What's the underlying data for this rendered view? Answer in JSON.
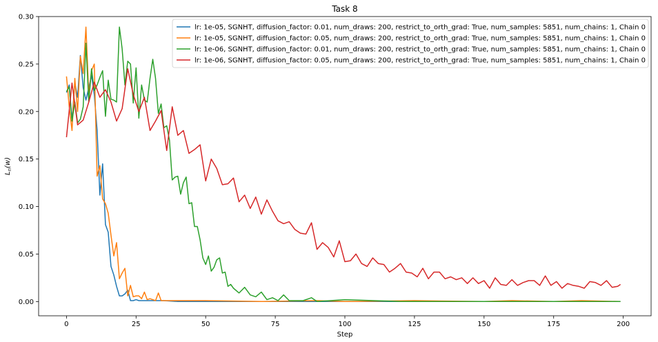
{
  "chart_data": {
    "type": "line",
    "title": "Task 8",
    "xlabel": "Step",
    "ylabel": "L_n(w)",
    "xlim": [
      -10,
      210
    ],
    "ylim": [
      -0.015,
      0.3
    ],
    "xticks": [
      0,
      25,
      50,
      75,
      100,
      125,
      150,
      175,
      200
    ],
    "yticks": [
      0.0,
      0.05,
      0.1,
      0.15,
      0.2,
      0.25,
      0.3
    ],
    "xtick_labels": [
      "0",
      "25",
      "50",
      "75",
      "100",
      "125",
      "150",
      "175",
      "200"
    ],
    "ytick_labels": [
      "0.00",
      "0.05",
      "0.10",
      "0.15",
      "0.20",
      "0.25",
      "0.30"
    ],
    "grid": false,
    "legend_position": "top-right",
    "series": [
      {
        "name": "lr: 1e-05, SGNHT, diffusion_factor: 0.01, num_draws: 200, restrict_to_orth_grad: True, num_samples: 5851, num_chains: 1,  Chain 0",
        "color": "#1f77b4",
        "x": [
          0,
          1,
          2,
          3,
          4,
          5,
          6,
          7,
          8,
          9,
          10,
          11,
          12,
          13,
          14,
          15,
          16,
          17,
          18,
          19,
          20,
          21,
          22,
          23,
          24,
          25,
          26,
          27,
          28,
          29,
          30,
          35,
          40,
          60,
          80,
          100,
          150,
          199
        ],
        "values": [
          0.22,
          0.228,
          0.19,
          0.23,
          0.215,
          0.259,
          0.225,
          0.212,
          0.225,
          0.238,
          0.218,
          0.18,
          0.112,
          0.145,
          0.081,
          0.073,
          0.037,
          0.028,
          0.016,
          0.006,
          0.006,
          0.008,
          0.012,
          0.001,
          0.001,
          0.002,
          0.001,
          0.001,
          0.001,
          0.001,
          0.001,
          0.001,
          0.0,
          0.0,
          0.0,
          0.0,
          0.0,
          0.0
        ]
      },
      {
        "name": "lr: 1e-05, SGNHT, diffusion_factor: 0.05, num_draws: 200, restrict_to_orth_grad: True, num_samples: 5851, num_chains: 1,  Chain 0",
        "color": "#ff7f0e",
        "x": [
          0,
          1,
          2,
          3,
          4,
          5,
          6,
          7,
          8,
          9,
          10,
          11,
          12,
          13,
          14,
          15,
          16,
          17,
          18,
          19,
          20,
          21,
          22,
          23,
          24,
          25,
          26,
          27,
          28,
          29,
          30,
          31,
          32,
          33,
          34,
          35,
          40,
          45,
          50,
          70,
          90,
          100,
          125,
          150,
          160,
          175,
          185,
          199
        ],
        "values": [
          0.237,
          0.205,
          0.18,
          0.235,
          0.2,
          0.258,
          0.24,
          0.289,
          0.218,
          0.243,
          0.25,
          0.132,
          0.143,
          0.108,
          0.103,
          0.093,
          0.07,
          0.048,
          0.062,
          0.024,
          0.03,
          0.035,
          0.006,
          0.017,
          0.005,
          0.006,
          0.006,
          0.003,
          0.01,
          0.002,
          0.003,
          0.002,
          0.001,
          0.009,
          0.001,
          0.001,
          0.001,
          0.001,
          0.001,
          0.0,
          0.001,
          0.0,
          0.001,
          0.0,
          0.001,
          0.0,
          0.001,
          0.0
        ]
      },
      {
        "name": "lr: 1e-06, SGNHT, diffusion_factor: 0.01, num_draws: 200, restrict_to_orth_grad: True, num_samples: 5851, num_chains: 1,  Chain 0",
        "color": "#2ca02c",
        "x": [
          0,
          1,
          2,
          3,
          4,
          5,
          6,
          7,
          8,
          9,
          10,
          11,
          12,
          13,
          14,
          15,
          16,
          17,
          18,
          19,
          20,
          21,
          22,
          23,
          24,
          25,
          26,
          27,
          28,
          29,
          30,
          31,
          32,
          33,
          34,
          35,
          36,
          37,
          38,
          39,
          40,
          41,
          42,
          43,
          44,
          45,
          46,
          47,
          48,
          49,
          50,
          51,
          52,
          53,
          54,
          55,
          56,
          57,
          58,
          59,
          60,
          62,
          64,
          66,
          68,
          70,
          72,
          74,
          76,
          78,
          80,
          85,
          88,
          90,
          100,
          120,
          150,
          199
        ],
        "values": [
          0.221,
          0.226,
          0.19,
          0.21,
          0.188,
          0.192,
          0.205,
          0.272,
          0.21,
          0.245,
          0.222,
          0.228,
          0.236,
          0.243,
          0.195,
          0.233,
          0.213,
          0.212,
          0.21,
          0.289,
          0.266,
          0.228,
          0.253,
          0.25,
          0.209,
          0.246,
          0.193,
          0.228,
          0.212,
          0.21,
          0.235,
          0.255,
          0.235,
          0.198,
          0.208,
          0.183,
          0.185,
          0.17,
          0.128,
          0.131,
          0.132,
          0.113,
          0.125,
          0.131,
          0.103,
          0.104,
          0.079,
          0.079,
          0.065,
          0.046,
          0.039,
          0.048,
          0.032,
          0.036,
          0.044,
          0.046,
          0.03,
          0.031,
          0.016,
          0.018,
          0.014,
          0.009,
          0.015,
          0.007,
          0.005,
          0.01,
          0.002,
          0.004,
          0.001,
          0.007,
          0.001,
          0.001,
          0.004,
          0.0,
          0.002,
          0.0,
          0.0,
          0.0
        ]
      },
      {
        "name": "lr: 1e-06, SGNHT, diffusion_factor: 0.05, num_draws: 200, restrict_to_orth_grad: True, num_samples: 5851, num_chains: 1,  Chain 0",
        "color": "#d62728",
        "x": [
          0,
          2,
          4,
          6,
          8,
          10,
          12,
          14,
          16,
          18,
          20,
          22,
          24,
          26,
          28,
          30,
          32,
          34,
          36,
          38,
          40,
          42,
          44,
          46,
          48,
          50,
          52,
          54,
          56,
          58,
          60,
          62,
          64,
          66,
          68,
          70,
          72,
          74,
          76,
          78,
          80,
          82,
          84,
          86,
          88,
          90,
          92,
          94,
          96,
          98,
          100,
          102,
          104,
          106,
          108,
          110,
          112,
          114,
          116,
          118,
          120,
          122,
          124,
          126,
          128,
          130,
          132,
          134,
          136,
          138,
          140,
          142,
          144,
          146,
          148,
          150,
          152,
          154,
          156,
          158,
          160,
          162,
          164,
          166,
          168,
          170,
          172,
          174,
          176,
          178,
          180,
          182,
          184,
          186,
          188,
          190,
          192,
          194,
          196,
          198,
          199
        ],
        "values": [
          0.173,
          0.23,
          0.186,
          0.191,
          0.21,
          0.231,
          0.215,
          0.223,
          0.21,
          0.19,
          0.203,
          0.245,
          0.218,
          0.2,
          0.215,
          0.18,
          0.19,
          0.201,
          0.159,
          0.205,
          0.175,
          0.18,
          0.156,
          0.16,
          0.165,
          0.127,
          0.15,
          0.14,
          0.123,
          0.124,
          0.13,
          0.105,
          0.112,
          0.098,
          0.11,
          0.092,
          0.107,
          0.095,
          0.085,
          0.082,
          0.084,
          0.076,
          0.072,
          0.071,
          0.083,
          0.055,
          0.062,
          0.057,
          0.047,
          0.064,
          0.042,
          0.043,
          0.05,
          0.04,
          0.037,
          0.046,
          0.04,
          0.039,
          0.031,
          0.035,
          0.04,
          0.031,
          0.03,
          0.026,
          0.035,
          0.024,
          0.031,
          0.031,
          0.024,
          0.026,
          0.023,
          0.025,
          0.019,
          0.025,
          0.019,
          0.022,
          0.014,
          0.025,
          0.018,
          0.017,
          0.023,
          0.017,
          0.02,
          0.022,
          0.022,
          0.017,
          0.027,
          0.017,
          0.021,
          0.014,
          0.019,
          0.017,
          0.016,
          0.014,
          0.021,
          0.02,
          0.017,
          0.022,
          0.015,
          0.016,
          0.018
        ]
      }
    ]
  }
}
